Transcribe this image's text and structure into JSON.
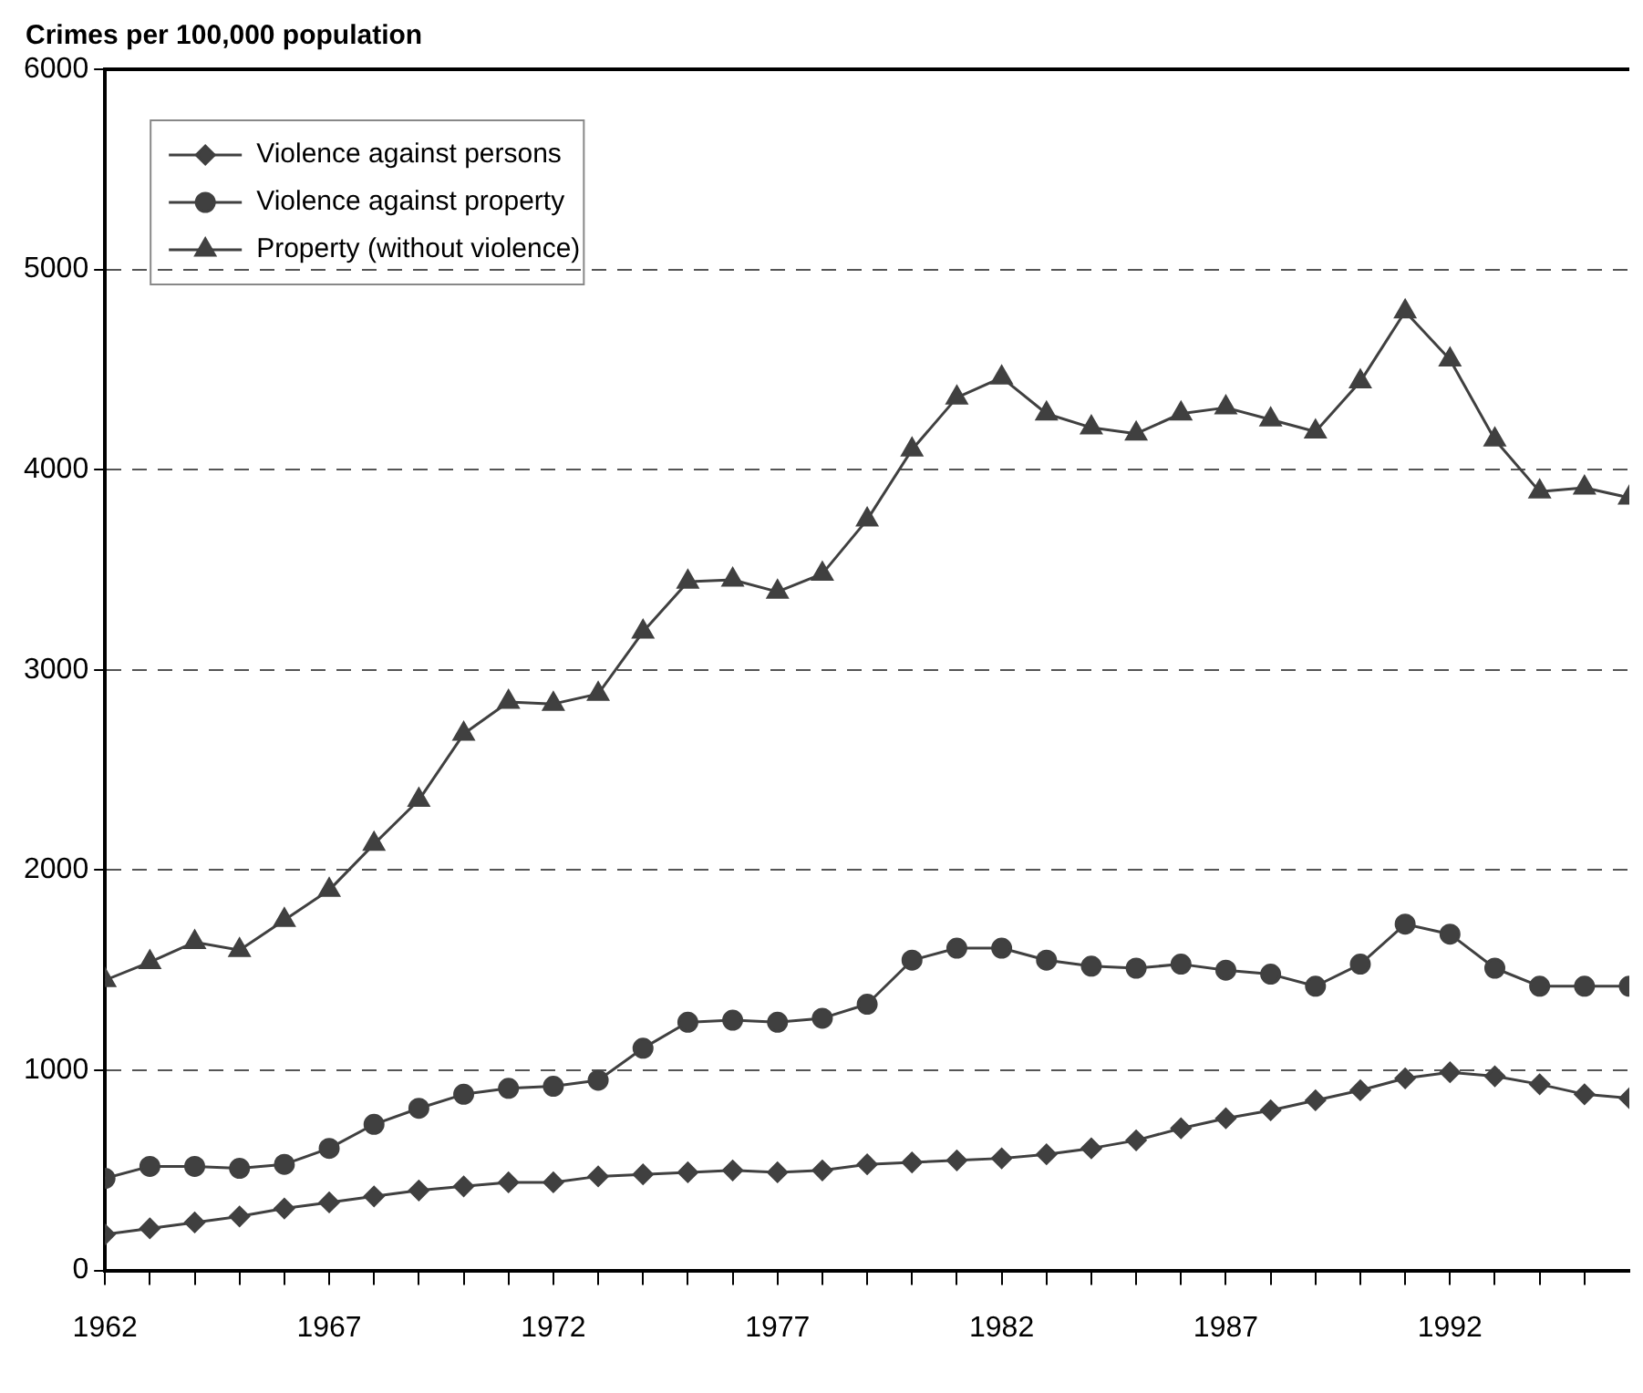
{
  "chart_data": {
    "type": "line",
    "ylabel": "Crimes per 100,000 population",
    "x": [
      1962,
      1963,
      1964,
      1965,
      1966,
      1967,
      1968,
      1969,
      1970,
      1971,
      1972,
      1973,
      1974,
      1975,
      1976,
      1977,
      1978,
      1979,
      1980,
      1981,
      1982,
      1983,
      1984,
      1985,
      1986,
      1987,
      1988,
      1989,
      1990,
      1991,
      1992,
      1993,
      1994,
      1995,
      1996
    ],
    "xlim": [
      1962,
      1996
    ],
    "xticks": [
      1962,
      {
        "value": 1963,
        "label": null
      },
      {
        "value": 1964,
        "label": null
      },
      {
        "value": 1965,
        "label": null
      },
      {
        "value": 1966,
        "label": null
      },
      1967,
      {
        "value": 1968,
        "label": null
      },
      {
        "value": 1969,
        "label": null
      },
      {
        "value": 1970,
        "label": null
      },
      {
        "value": 1971,
        "label": null
      },
      1972,
      {
        "value": 1973,
        "label": null
      },
      {
        "value": 1974,
        "label": null
      },
      {
        "value": 1975,
        "label": null
      },
      {
        "value": 1976,
        "label": null
      },
      1977,
      {
        "value": 1978,
        "label": null
      },
      {
        "value": 1979,
        "label": null
      },
      {
        "value": 1980,
        "label": null
      },
      {
        "value": 1981,
        "label": null
      },
      1982,
      {
        "value": 1983,
        "label": null
      },
      {
        "value": 1984,
        "label": null
      },
      {
        "value": 1985,
        "label": null
      },
      {
        "value": 1986,
        "label": null
      },
      1987,
      {
        "value": 1988,
        "label": null
      },
      {
        "value": 1989,
        "label": null
      },
      {
        "value": 1990,
        "label": null
      },
      {
        "value": 1991,
        "label": null
      },
      1992,
      {
        "value": 1993,
        "label": null
      },
      {
        "value": 1994,
        "label": null
      },
      {
        "value": 1995,
        "label": null
      }
    ],
    "ylim": [
      0,
      6000
    ],
    "yticks": [
      0,
      1000,
      2000,
      3000,
      4000,
      5000,
      6000
    ],
    "grid": "y",
    "line_style": "solid",
    "legend": "top left",
    "series": [
      {
        "name": "Violence against persons",
        "color": "#404040",
        "marker": "diamond",
        "values": [
          180,
          210,
          240,
          270,
          310,
          340,
          370,
          400,
          420,
          440,
          440,
          470,
          480,
          490,
          500,
          490,
          500,
          530,
          540,
          550,
          560,
          580,
          610,
          650,
          710,
          760,
          800,
          850,
          900,
          960,
          990,
          970,
          930,
          880,
          860
        ]
      },
      {
        "name": "Violence against property",
        "color": "#404040",
        "marker": "circle",
        "values": [
          460,
          520,
          520,
          510,
          530,
          610,
          730,
          810,
          880,
          910,
          920,
          950,
          1110,
          1240,
          1250,
          1240,
          1260,
          1330,
          1550,
          1610,
          1610,
          1550,
          1520,
          1510,
          1530,
          1500,
          1480,
          1420,
          1530,
          1730,
          1680,
          1510,
          1420,
          1420,
          1420
        ]
      },
      {
        "name": "Property (without violence)",
        "color": "#404040",
        "marker": "triangle",
        "values": [
          1450,
          1540,
          1640,
          1600,
          1750,
          1900,
          2130,
          2350,
          2680,
          2840,
          2830,
          2880,
          3190,
          3440,
          3450,
          3390,
          3480,
          3750,
          4100,
          4360,
          4460,
          4280,
          4210,
          4180,
          4280,
          4310,
          4250,
          4190,
          4440,
          4790,
          4550,
          4150,
          3890,
          3910,
          3860
        ]
      }
    ]
  }
}
